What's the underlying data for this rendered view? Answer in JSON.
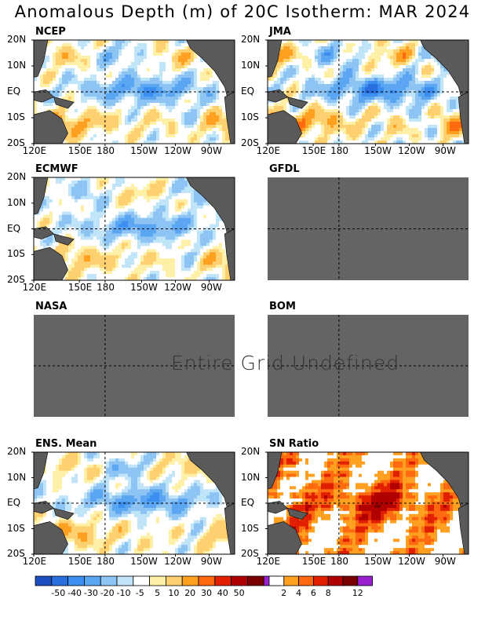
{
  "title": "Anomalous Depth (m) of 20C Isotherm: MAR 2024",
  "undefined_text": "Entire Grid Undefined",
  "colors": {
    "undefined_fill": "#646464",
    "land": "#5a5a5a",
    "anomaly_scale": [
      "#1b4fc0",
      "#2a6fe0",
      "#3c8ef0",
      "#5aa6f2",
      "#8ec4f4",
      "#c0e4f8",
      "#ffffff",
      "#fff0a8",
      "#ffd070",
      "#ffa020",
      "#ff6a10",
      "#e02000",
      "#b00000",
      "#7a0000",
      "#9a20d0"
    ],
    "sn_scale": [
      "#ffffff",
      "#ffa020",
      "#ff6a10",
      "#e02000",
      "#b00000",
      "#7a0000",
      "#9a20d0"
    ]
  },
  "chart_data": [
    {
      "type": "heatmap",
      "title": "NCEP",
      "x_ticks": [
        "120E",
        "150E",
        "180",
        "150W",
        "120W",
        "90W"
      ],
      "y_ticks": [
        "20N",
        "10N",
        "EQ",
        "10S",
        "20S"
      ],
      "defined": true,
      "data_source": "anomaly"
    },
    {
      "type": "heatmap",
      "title": "JMA",
      "x_ticks": [
        "120E",
        "150E",
        "180",
        "150W",
        "120W",
        "90W"
      ],
      "y_ticks": [
        "20N",
        "10N",
        "EQ",
        "10S",
        "20S"
      ],
      "defined": true,
      "data_source": "anomaly"
    },
    {
      "type": "heatmap",
      "title": "ECMWF",
      "x_ticks": [
        "120E",
        "150E",
        "180",
        "150W",
        "120W",
        "90W"
      ],
      "y_ticks": [
        "20N",
        "10N",
        "EQ",
        "10S",
        "20S"
      ],
      "defined": true,
      "data_source": "anomaly"
    },
    {
      "type": "heatmap",
      "title": "GFDL",
      "x_ticks": [],
      "y_ticks": [],
      "defined": false
    },
    {
      "type": "heatmap",
      "title": "NASA",
      "x_ticks": [],
      "y_ticks": [],
      "defined": false
    },
    {
      "type": "heatmap",
      "title": "BOM",
      "x_ticks": [],
      "y_ticks": [],
      "defined": false
    },
    {
      "type": "heatmap",
      "title": "ENS. Mean",
      "x_ticks": [
        "120E",
        "150E",
        "180",
        "150W",
        "120W",
        "90W"
      ],
      "y_ticks": [
        "20N",
        "10N",
        "EQ",
        "10S",
        "20S"
      ],
      "defined": true,
      "data_source": "anomaly"
    },
    {
      "type": "heatmap",
      "title": "SN Ratio",
      "x_ticks": [
        "120E",
        "150E",
        "180",
        "150W",
        "120W",
        "90W"
      ],
      "y_ticks": [
        "20N",
        "10N",
        "EQ",
        "10S",
        "20S"
      ],
      "defined": true,
      "data_source": "sn"
    }
  ],
  "legend_anomaly": {
    "labels": [
      "-50",
      "-40",
      "-30",
      "-20",
      "-10",
      "-5",
      "5",
      "10",
      "20",
      "30",
      "40",
      "50"
    ]
  },
  "legend_sn": {
    "labels": [
      "2",
      "4",
      "6",
      "8",
      "12"
    ]
  }
}
